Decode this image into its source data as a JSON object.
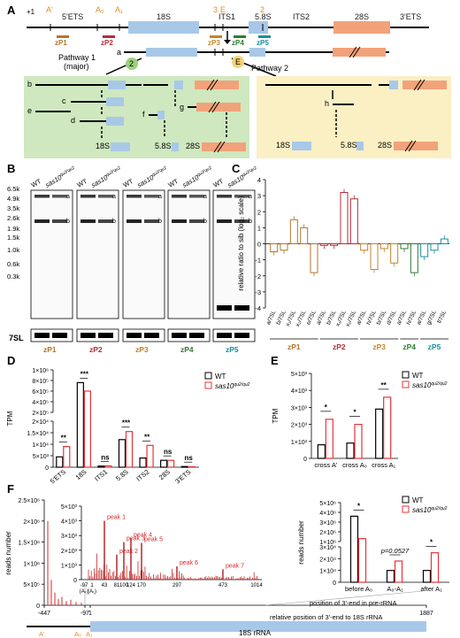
{
  "panels": {
    "A": "A",
    "B": "B",
    "C": "C",
    "D": "D",
    "E": "E",
    "F": "F"
  },
  "panelA": {
    "plus1": "+1",
    "sites": [
      {
        "id": "Ap",
        "text": "A'"
      },
      {
        "id": "A0",
        "text": "A₀"
      },
      {
        "id": "A1",
        "text": "A₁"
      },
      {
        "id": "s3",
        "text": "3"
      },
      {
        "id": "sE",
        "text": "E"
      },
      {
        "id": "s2",
        "text": "2"
      }
    ],
    "regions": {
      "ets5": "5'ETS",
      "r18s": "18S",
      "its1": "ITS1",
      "r58s": "5.8S",
      "its2": "ITS2",
      "r28s": "28S",
      "ets3": "3'ETS"
    },
    "probes": [
      {
        "label": "zP1",
        "color": "#b5762a"
      },
      {
        "label": "zP2",
        "color": "#b22d3a"
      },
      {
        "label": "zP3",
        "color": "#c9812f"
      },
      {
        "label": "zP4",
        "color": "#2e7d32"
      },
      {
        "label": "zP5",
        "color": "#1a8fa0"
      }
    ],
    "precursor_a": "a",
    "pathway1": "Pathway 1\n(major)",
    "pathway2": "Pathway 2",
    "circ1": "2",
    "circ2": "E",
    "intermediates": {
      "b": "b",
      "c": "c",
      "d": "d",
      "e": "e",
      "f": "f",
      "g": "g",
      "h": "h"
    },
    "products": {
      "p18s": "18S",
      "p58s": "5.8S",
      "p28s": "28S"
    }
  },
  "panelB": {
    "genotypes": {
      "wt": "WT",
      "mut": "sas10",
      "mut_sup": "qu2/qu2"
    },
    "markers": [
      "6.5k",
      "4.9k",
      "3.5k",
      "2.6k",
      "1.9k",
      "1.5k",
      "1.0k",
      "0.6k",
      "0.3k"
    ],
    "loading": "7SL",
    "probe_labels": [
      "zP1",
      "zP2",
      "zP3",
      "zP4",
      "zP5"
    ]
  },
  "chart_data": [
    {
      "panel": "C",
      "type": "bar",
      "ylabel": "relative ratio to sib (log₂ scale)",
      "ylim": [
        -4,
        4
      ],
      "yticks": [
        4,
        3,
        2,
        1,
        0,
        -1,
        -2,
        -3,
        -4
      ],
      "categories": [
        "a/7SL",
        "b/7SL",
        "x₁/7SL",
        "x₂/7SL",
        "e/7SL",
        "a/7SL",
        "b/7SL",
        "x₁/7SL",
        "x₂/7SL",
        "a/7SL",
        "h/7SL",
        "b/7SL",
        "d/7SL",
        "a/7SL",
        "h/7SL",
        "a/7SL",
        "g/7SL",
        "f/7SL"
      ],
      "values": [
        -0.5,
        -0.4,
        1.5,
        1.0,
        -1.8,
        -0.1,
        -0.1,
        3.2,
        2.8,
        -0.4,
        -1.6,
        -0.3,
        -1.2,
        -0.3,
        -1.8,
        -0.8,
        -0.4,
        0.3
      ],
      "groups": [
        {
          "label": "zP1",
          "from": 0,
          "to": 4,
          "color": "#b5762a"
        },
        {
          "label": "zP2",
          "from": 5,
          "to": 8,
          "color": "#b22d3a"
        },
        {
          "label": "zP3",
          "from": 9,
          "to": 12,
          "color": "#c9812f"
        },
        {
          "label": "zP4",
          "from": 13,
          "to": 14,
          "color": "#2e7d32"
        },
        {
          "label": "zP5",
          "from": 15,
          "to": 17,
          "color": "#1a8fa0"
        }
      ]
    },
    {
      "panel": "D",
      "type": "bar",
      "ylabel": "TPM",
      "yticks": [
        "1×10⁶",
        "8×10⁵",
        "6×10⁵",
        "4×10⁵",
        "2×10⁵",
        "2×10⁴",
        "1.5×10⁴",
        "1×10⁴",
        "5×10³",
        "0"
      ],
      "categories": [
        "5'ETS",
        "18S",
        "ITS1",
        "5.8S",
        "ITS2",
        "28S",
        "3'ETS"
      ],
      "series": [
        {
          "name": "WT",
          "values": [
            4500,
            760000,
            500,
            12000,
            4000,
            3000,
            300
          ]
        },
        {
          "name": "sas10 qu2/qu2",
          "values": [
            9000,
            600000,
            600,
            15500,
            9500,
            3000,
            200
          ]
        }
      ],
      "significance": [
        "**",
        "***",
        "ns",
        "***",
        "**",
        "ns",
        "ns"
      ],
      "colors": {
        "wt": "#000000",
        "mut": "#e8333a"
      }
    },
    {
      "panel": "E",
      "type": "bar",
      "ylabel": "TPM",
      "ylim": [
        0,
        5000
      ],
      "yticks": [
        "5×10³",
        "4×10³",
        "3×10³",
        "2×10³",
        "1×10³",
        "0"
      ],
      "categories": [
        "cross A'",
        "cross A₀",
        "cross A₁"
      ],
      "series": [
        {
          "name": "WT",
          "values": [
            800,
            900,
            2900
          ]
        },
        {
          "name": "sas10 qu2/qu2",
          "values": [
            2300,
            2000,
            3600
          ]
        }
      ],
      "significance": [
        "*",
        "*",
        "**"
      ]
    },
    {
      "panel": "F-left",
      "type": "bar",
      "ylabel": "reads number",
      "xlabel": "relative position of 3'-end to 18S rRNA",
      "yticks": [
        "2.5×10⁶",
        "2×10⁶",
        "1.5×10⁶",
        "1×10⁶",
        "5×10⁵",
        "0"
      ],
      "xticks": [
        "-447",
        "-97",
        "1",
        "1887"
      ],
      "inset": {
        "yticks": [
          "5×10³",
          "4×10³",
          "3×10³",
          "2×10³",
          "1×10³",
          "0"
        ],
        "xticks": [
          "-97\n(A₀)",
          "1\n(A₁)",
          "43",
          "81",
          "100",
          "124",
          "170",
          "297",
          "473",
          "1014"
        ],
        "peaks": [
          {
            "label": "peak 1",
            "x": 43,
            "y": 4000
          },
          {
            "label": "peak 2",
            "x": 81,
            "y": 1700
          },
          {
            "label": "peak 3",
            "x": 100,
            "y": 2550
          },
          {
            "label": "peak 4",
            "x": 124,
            "y": 2800
          },
          {
            "label": "peak 5",
            "x": 170,
            "y": 2500
          },
          {
            "label": "peak 6",
            "x": 297,
            "y": 900
          },
          {
            "label": "peak 7",
            "x": 473,
            "y": 700
          }
        ]
      },
      "sites": [
        "A'",
        "A₀",
        "A₁"
      ],
      "rrna_label": "18S rRNA"
    },
    {
      "panel": "F-right",
      "type": "bar",
      "ylabel": "reads number",
      "xlabel": "position of 3'-end in pre-rRNA",
      "yticks": [
        "5×10⁶",
        "4×10⁶",
        "3×10⁶",
        "2×10⁶",
        "1×10⁶",
        "3×10⁴",
        "2×10⁴",
        "1×10⁴",
        "0"
      ],
      "categories": [
        "before A₀",
        "A₀-A₁",
        "after A₁"
      ],
      "series": [
        {
          "name": "WT",
          "values": [
            3600000,
            10000,
            10000
          ]
        },
        {
          "name": "sas10 qu2/qu2",
          "values": [
            1300000,
            18000,
            25000
          ]
        }
      ],
      "significance": [
        "*",
        "p=0.0527",
        "*"
      ]
    }
  ],
  "legend": {
    "wt": "WT",
    "mut": "sas10",
    "mut_sup": "qu2/qu2"
  }
}
